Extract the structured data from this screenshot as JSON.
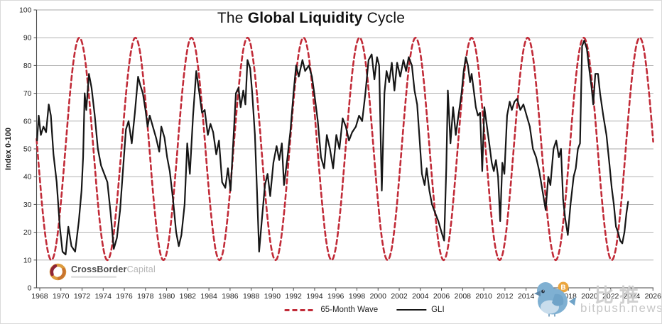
{
  "header": {
    "title_pre": "The ",
    "title_bold": "Global Liquidity",
    "title_post": " Cycle"
  },
  "chart_data": {
    "type": "line",
    "title": "The Global Liquidity Cycle",
    "xlabel": "",
    "ylabel": "Index 0-100",
    "xlim": [
      1967.7,
      2026.05
    ],
    "ylim": [
      0,
      100
    ],
    "grid": "horizontal",
    "legend_position": "bottom-center",
    "y_ticks": [
      0,
      10,
      20,
      30,
      40,
      50,
      60,
      70,
      80,
      90,
      100
    ],
    "x_ticks": [
      1968,
      1970,
      1972,
      1974,
      1976,
      1978,
      1980,
      1982,
      1984,
      1986,
      1988,
      1990,
      1992,
      1994,
      1996,
      1998,
      2000,
      2002,
      2004,
      2006,
      2008,
      2010,
      2012,
      2014,
      2016,
      2018,
      2020,
      2022,
      2024,
      2026
    ],
    "series": [
      {
        "name": "65-Month Wave",
        "kind": "sine",
        "color": "#c12b38",
        "dash": true,
        "min": 10,
        "max": 90,
        "period_years": 5.3,
        "trough_year": 2022.1
      },
      {
        "name": "GLI",
        "kind": "points",
        "color": "#161616",
        "dash": false,
        "points": [
          [
            1967.75,
            53
          ],
          [
            1967.9,
            62
          ],
          [
            1968.1,
            55
          ],
          [
            1968.35,
            58
          ],
          [
            1968.6,
            56
          ],
          [
            1968.85,
            66
          ],
          [
            1969.05,
            62
          ],
          [
            1969.3,
            48
          ],
          [
            1969.6,
            38
          ],
          [
            1969.9,
            22
          ],
          [
            1970.15,
            13
          ],
          [
            1970.45,
            12
          ],
          [
            1970.7,
            22
          ],
          [
            1971.0,
            15
          ],
          [
            1971.35,
            13
          ],
          [
            1971.7,
            24
          ],
          [
            1971.95,
            35
          ],
          [
            1972.1,
            47
          ],
          [
            1972.25,
            70
          ],
          [
            1972.4,
            64
          ],
          [
            1972.65,
            77
          ],
          [
            1972.9,
            72
          ],
          [
            1973.2,
            62
          ],
          [
            1973.5,
            50
          ],
          [
            1973.8,
            44
          ],
          [
            1974.1,
            41
          ],
          [
            1974.4,
            38
          ],
          [
            1974.7,
            27
          ],
          [
            1975.0,
            14
          ],
          [
            1975.3,
            18
          ],
          [
            1975.6,
            28
          ],
          [
            1975.9,
            44
          ],
          [
            1976.15,
            57
          ],
          [
            1976.4,
            60
          ],
          [
            1976.7,
            52
          ],
          [
            1977.0,
            63
          ],
          [
            1977.3,
            76
          ],
          [
            1977.5,
            73
          ],
          [
            1977.75,
            70
          ],
          [
            1978.0,
            64
          ],
          [
            1978.2,
            58
          ],
          [
            1978.4,
            62
          ],
          [
            1978.7,
            58
          ],
          [
            1979.0,
            54
          ],
          [
            1979.3,
            49
          ],
          [
            1979.5,
            58
          ],
          [
            1979.8,
            54
          ],
          [
            1980.05,
            47
          ],
          [
            1980.3,
            42
          ],
          [
            1980.6,
            32
          ],
          [
            1980.9,
            20
          ],
          [
            1981.15,
            15
          ],
          [
            1981.4,
            19
          ],
          [
            1981.7,
            30
          ],
          [
            1981.95,
            52
          ],
          [
            1982.2,
            41
          ],
          [
            1982.5,
            62
          ],
          [
            1982.8,
            78
          ],
          [
            1983.1,
            70
          ],
          [
            1983.35,
            63
          ],
          [
            1983.6,
            64
          ],
          [
            1983.9,
            55
          ],
          [
            1984.15,
            59
          ],
          [
            1984.4,
            56
          ],
          [
            1984.7,
            48
          ],
          [
            1984.95,
            53
          ],
          [
            1985.25,
            38
          ],
          [
            1985.55,
            36
          ],
          [
            1985.8,
            43
          ],
          [
            1986.05,
            35
          ],
          [
            1986.3,
            52
          ],
          [
            1986.55,
            70
          ],
          [
            1986.8,
            72
          ],
          [
            1987.0,
            65
          ],
          [
            1987.25,
            71
          ],
          [
            1987.45,
            66
          ],
          [
            1987.65,
            82
          ],
          [
            1987.9,
            79
          ],
          [
            1988.1,
            70
          ],
          [
            1988.35,
            55
          ],
          [
            1988.55,
            35
          ],
          [
            1988.75,
            13
          ],
          [
            1989.0,
            24
          ],
          [
            1989.3,
            37
          ],
          [
            1989.55,
            41
          ],
          [
            1989.8,
            33
          ],
          [
            1990.1,
            45
          ],
          [
            1990.4,
            51
          ],
          [
            1990.65,
            46
          ],
          [
            1990.9,
            52
          ],
          [
            1991.1,
            37
          ],
          [
            1991.4,
            46
          ],
          [
            1991.7,
            56
          ],
          [
            1992.0,
            70
          ],
          [
            1992.25,
            80
          ],
          [
            1992.5,
            76
          ],
          [
            1992.85,
            82
          ],
          [
            1993.1,
            78
          ],
          [
            1993.45,
            80
          ],
          [
            1993.75,
            76
          ],
          [
            1994.0,
            69
          ],
          [
            1994.3,
            60
          ],
          [
            1994.6,
            47
          ],
          [
            1994.9,
            43
          ],
          [
            1995.15,
            55
          ],
          [
            1995.45,
            50
          ],
          [
            1995.75,
            43
          ],
          [
            1996.05,
            55
          ],
          [
            1996.35,
            50
          ],
          [
            1996.65,
            61
          ],
          [
            1996.95,
            58
          ],
          [
            1997.25,
            53
          ],
          [
            1997.55,
            56
          ],
          [
            1997.9,
            58
          ],
          [
            1998.2,
            62
          ],
          [
            1998.5,
            60
          ],
          [
            1998.8,
            70
          ],
          [
            1999.1,
            82
          ],
          [
            1999.4,
            84
          ],
          [
            1999.65,
            75
          ],
          [
            1999.9,
            83
          ],
          [
            2000.1,
            80
          ],
          [
            2000.35,
            35
          ],
          [
            2000.6,
            70
          ],
          [
            2000.8,
            78
          ],
          [
            2001.05,
            74
          ],
          [
            2001.3,
            81
          ],
          [
            2001.55,
            71
          ],
          [
            2001.8,
            81
          ],
          [
            2002.1,
            76
          ],
          [
            2002.4,
            82
          ],
          [
            2002.65,
            78
          ],
          [
            2002.9,
            83
          ],
          [
            2003.2,
            80
          ],
          [
            2003.45,
            71
          ],
          [
            2003.7,
            66
          ],
          [
            2003.9,
            55
          ],
          [
            2004.15,
            41
          ],
          [
            2004.4,
            37
          ],
          [
            2004.6,
            43
          ],
          [
            2004.85,
            35
          ],
          [
            2005.1,
            30
          ],
          [
            2005.4,
            27
          ],
          [
            2005.7,
            24
          ],
          [
            2006.0,
            20
          ],
          [
            2006.25,
            17
          ],
          [
            2006.45,
            43
          ],
          [
            2006.6,
            71
          ],
          [
            2006.85,
            52
          ],
          [
            2007.1,
            65
          ],
          [
            2007.35,
            55
          ],
          [
            2007.6,
            62
          ],
          [
            2007.9,
            70
          ],
          [
            2008.1,
            78
          ],
          [
            2008.3,
            83
          ],
          [
            2008.5,
            80
          ],
          [
            2008.7,
            74
          ],
          [
            2008.85,
            77
          ],
          [
            2009.05,
            71
          ],
          [
            2009.25,
            65
          ],
          [
            2009.45,
            62
          ],
          [
            2009.65,
            63
          ],
          [
            2009.85,
            42
          ],
          [
            2010.05,
            65
          ],
          [
            2010.3,
            58
          ],
          [
            2010.55,
            51
          ],
          [
            2010.75,
            45
          ],
          [
            2010.95,
            42
          ],
          [
            2011.15,
            46
          ],
          [
            2011.35,
            40
          ],
          [
            2011.55,
            24
          ],
          [
            2011.75,
            45
          ],
          [
            2011.95,
            41
          ],
          [
            2012.2,
            62
          ],
          [
            2012.45,
            67
          ],
          [
            2012.65,
            64
          ],
          [
            2012.9,
            67
          ],
          [
            2013.15,
            68
          ],
          [
            2013.45,
            64
          ],
          [
            2013.75,
            66
          ],
          [
            2014.05,
            62
          ],
          [
            2014.35,
            58
          ],
          [
            2014.65,
            50
          ],
          [
            2014.95,
            47
          ],
          [
            2015.25,
            42
          ],
          [
            2015.55,
            35
          ],
          [
            2015.85,
            28
          ],
          [
            2016.1,
            40
          ],
          [
            2016.3,
            37
          ],
          [
            2016.6,
            50
          ],
          [
            2016.85,
            53
          ],
          [
            2017.1,
            47
          ],
          [
            2017.3,
            50
          ],
          [
            2017.5,
            32
          ],
          [
            2017.7,
            25
          ],
          [
            2017.95,
            19
          ],
          [
            2018.2,
            30
          ],
          [
            2018.5,
            40
          ],
          [
            2018.7,
            43
          ],
          [
            2018.9,
            50
          ],
          [
            2019.1,
            52
          ],
          [
            2019.3,
            87
          ],
          [
            2019.5,
            89
          ],
          [
            2019.75,
            86
          ],
          [
            2020.0,
            78
          ],
          [
            2020.2,
            72
          ],
          [
            2020.35,
            66
          ],
          [
            2020.55,
            77
          ],
          [
            2020.8,
            77
          ],
          [
            2021.0,
            70
          ],
          [
            2021.3,
            62
          ],
          [
            2021.6,
            55
          ],
          [
            2021.9,
            44
          ],
          [
            2022.1,
            36
          ],
          [
            2022.3,
            30
          ],
          [
            2022.5,
            22
          ],
          [
            2022.7,
            20
          ],
          [
            2022.9,
            17
          ],
          [
            2023.1,
            16
          ],
          [
            2023.3,
            20
          ],
          [
            2023.5,
            27
          ],
          [
            2023.65,
            31
          ]
        ]
      }
    ],
    "colors": {
      "wave": "#c12b38",
      "gli": "#161616",
      "grid": "#a8a8a8",
      "axis": "#4a4a4a",
      "tick_text": "#222222"
    }
  },
  "legend": {
    "items": [
      {
        "label": "65-Month Wave",
        "swatch": "red-dashed"
      },
      {
        "label": "GLI",
        "swatch": "black-solid"
      }
    ]
  },
  "branding": {
    "name_bold": "CrossBorder",
    "name_light": "Capital"
  },
  "watermark": {
    "cjk": "比推",
    "domain": "bitpush.news"
  }
}
